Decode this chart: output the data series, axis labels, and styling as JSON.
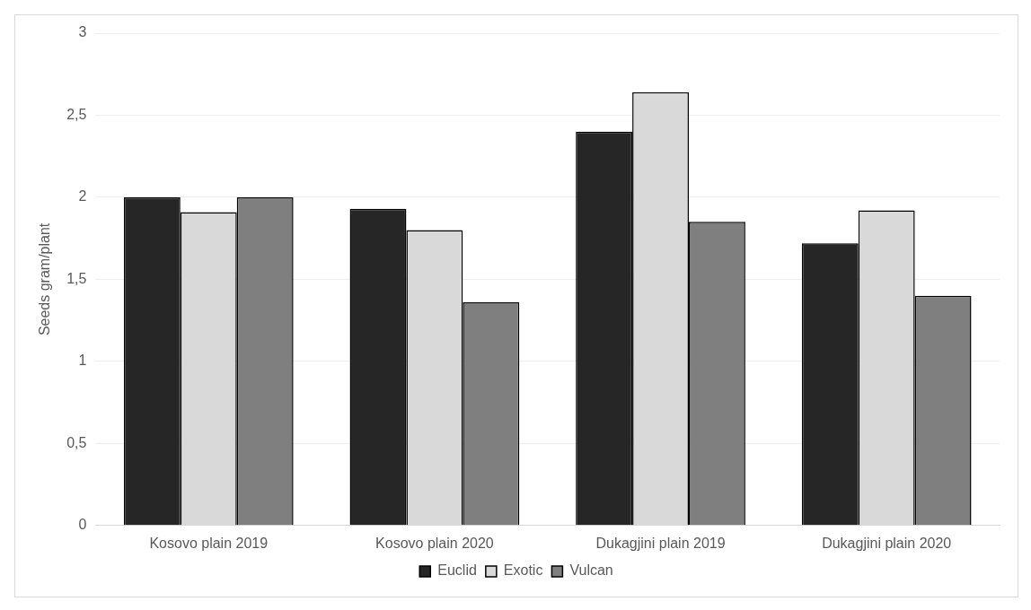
{
  "chart_data": {
    "type": "bar",
    "ylabel": "Seeds gram/plant",
    "categories": [
      "Kosovo plain 2019",
      "Kosovo plain 2020",
      "Dukagjini plain 2019",
      "Dukagjini plain 2020"
    ],
    "series": [
      {
        "name": "Euclid",
        "color": "#262626",
        "values": [
          2.0,
          1.93,
          2.4,
          1.72
        ]
      },
      {
        "name": "Exotic",
        "color": "#d9d9d9",
        "values": [
          1.91,
          1.8,
          2.64,
          1.92
        ]
      },
      {
        "name": "Vulcan",
        "color": "#7f7f7f",
        "values": [
          2.0,
          1.36,
          1.85,
          1.4
        ]
      }
    ],
    "ylim": [
      0,
      3
    ],
    "yticks": [
      0,
      {
        "value": 0.5,
        "label": "0,5"
      },
      1,
      {
        "value": 1.5,
        "label": "1,5"
      },
      2,
      {
        "value": 2.5,
        "label": "2,5"
      },
      3
    ],
    "grid": "y",
    "legend": "bottom"
  }
}
